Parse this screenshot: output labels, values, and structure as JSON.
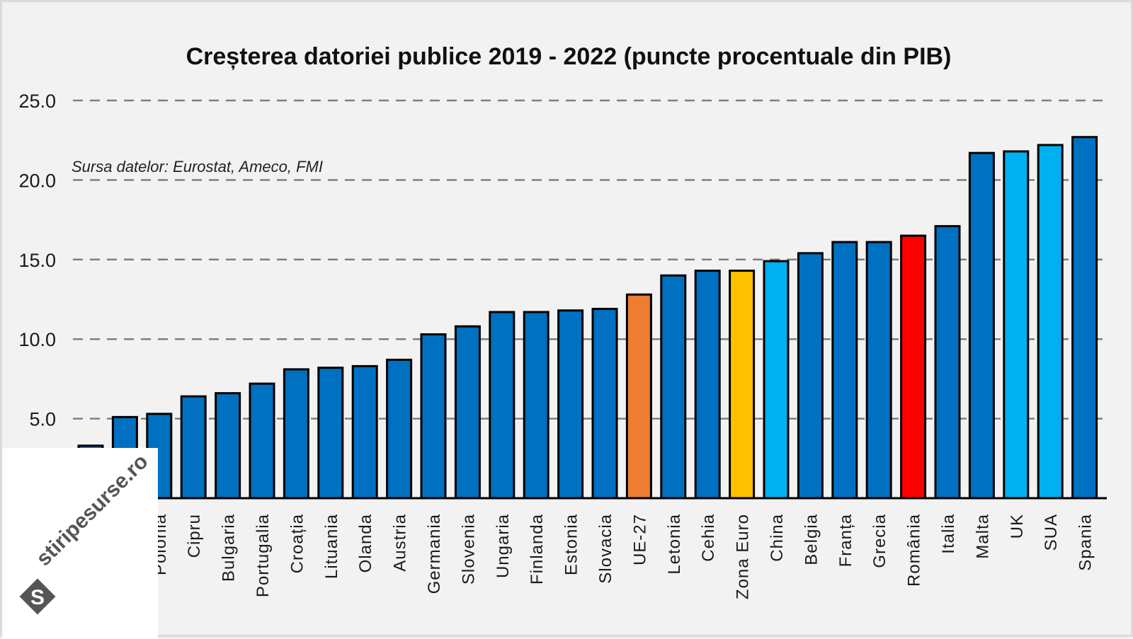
{
  "chart_data": {
    "type": "bar",
    "title": "Creșterea datoriei publice 2019 - 2022 (puncte procentuale din PIB)",
    "annotation": "Sursa datelor: Eurostat, Ameco, FMI",
    "xlabel": "",
    "ylabel": "",
    "ylim": [
      0,
      25
    ],
    "yticks": [
      "5.0",
      "10.0",
      "15.0",
      "20.0",
      "25.0"
    ],
    "ytick_values": [
      5,
      10,
      15,
      20,
      25
    ],
    "grid": true,
    "categories": [
      "",
      "",
      "Polonia",
      "Cipru",
      "Bulgaria",
      "Portugalia",
      "Croația",
      "Lituania",
      "Olanda",
      "Austria",
      "Germania",
      "Slovenia",
      "Ungaria",
      "Finlanda",
      "Estonia",
      "Slovacia",
      "UE-27",
      "Letonia",
      "Cehia",
      "Zona Euro",
      "China",
      "Belgia",
      "Franța",
      "Grecia",
      "România",
      "Italia",
      "Malta",
      "UK",
      "SUA",
      "Spania"
    ],
    "values": [
      3.3,
      5.1,
      5.3,
      6.4,
      6.6,
      7.2,
      8.1,
      8.2,
      8.3,
      8.7,
      10.3,
      10.8,
      11.7,
      11.7,
      11.8,
      11.9,
      12.8,
      14.0,
      14.3,
      14.3,
      14.9,
      15.4,
      16.1,
      16.1,
      16.5,
      17.1,
      21.7,
      21.8,
      22.2,
      22.7
    ],
    "colors": [
      "#0070c0",
      "#0070c0",
      "#0070c0",
      "#0070c0",
      "#0070c0",
      "#0070c0",
      "#0070c0",
      "#0070c0",
      "#0070c0",
      "#0070c0",
      "#0070c0",
      "#0070c0",
      "#0070c0",
      "#0070c0",
      "#0070c0",
      "#0070c0",
      "#ed7d31",
      "#0070c0",
      "#0070c0",
      "#ffc000",
      "#00b0f0",
      "#0070c0",
      "#0070c0",
      "#0070c0",
      "#ff0000",
      "#0070c0",
      "#0070c0",
      "#00b0f0",
      "#00b0f0",
      "#0070c0"
    ]
  },
  "watermark": {
    "text": "stiripesurse.ro",
    "logo_letter": "S"
  }
}
